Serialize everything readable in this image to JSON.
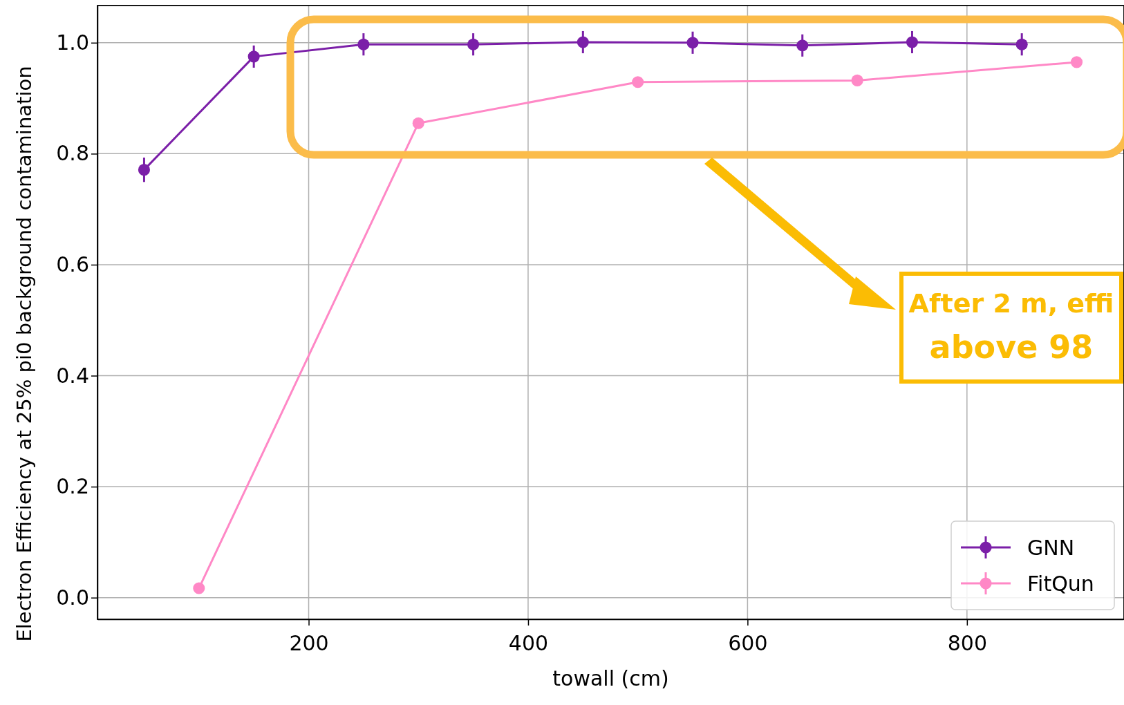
{
  "chart_data": {
    "type": "line",
    "xlabel": "towall (cm)",
    "ylabel": "Electron Efficiency at 25% pi0 background contamination",
    "xlim": [
      7.5,
      942.5
    ],
    "xticks": [
      200,
      400,
      600,
      800
    ],
    "ylim": [
      -0.039,
      1.067
    ],
    "yticks": [
      {
        "value": 0,
        "label": "0.0"
      },
      0.2,
      0.4,
      0.6,
      0.8,
      {
        "value": 1,
        "label": "1.0"
      }
    ],
    "grid": true,
    "legend": "bottom right",
    "marker": "circle",
    "series": [
      {
        "name": "GNN",
        "color": "#7b1fa8",
        "x": [
          50,
          150,
          250,
          350,
          450,
          550,
          650,
          750,
          850
        ],
        "values": [
          0.771,
          0.975,
          0.997,
          0.997,
          1.001,
          1.0,
          0.995,
          1.001,
          0.997
        ],
        "errors": [
          0.022,
          0.02,
          0.02,
          0.02,
          0.02,
          0.02,
          0.02,
          0.02,
          0.02
        ]
      },
      {
        "name": "FitQun",
        "color": "#ff88c6",
        "x": [
          100,
          300,
          500,
          700,
          900
        ],
        "values": [
          0.017,
          0.855,
          0.929,
          0.932,
          0.965
        ]
      }
    ],
    "annotations": [
      "After 2 m, effi\nabove 98"
    ]
  }
}
